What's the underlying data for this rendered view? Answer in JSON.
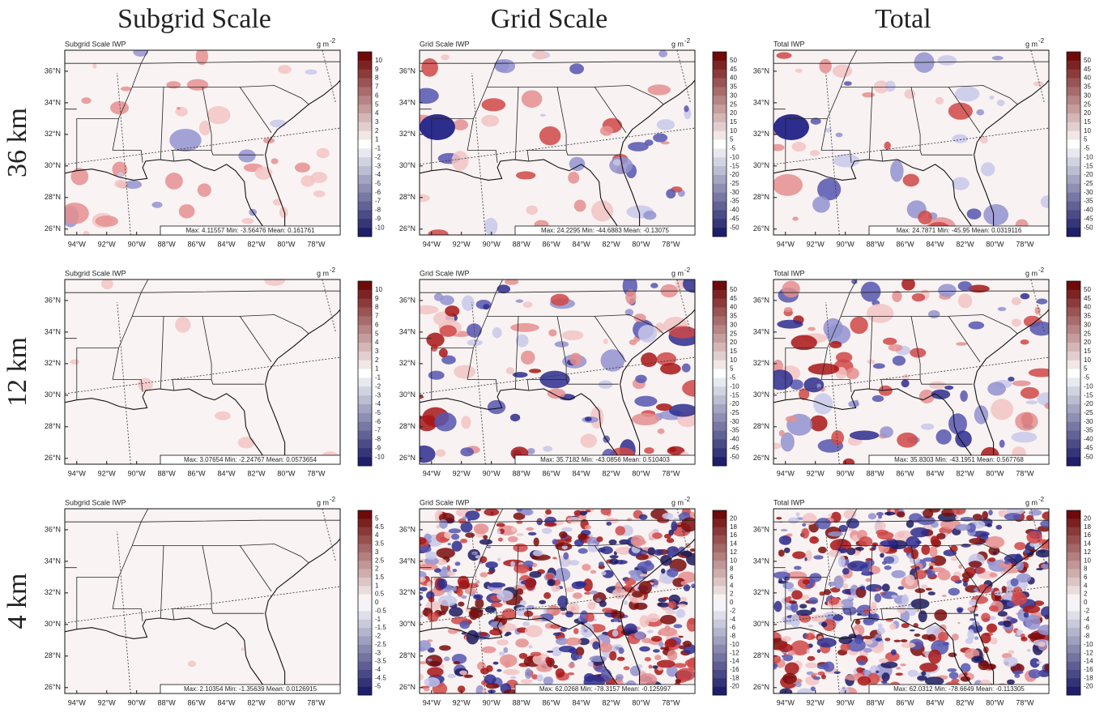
{
  "column_headers": [
    "Subgrid Scale",
    "Grid Scale",
    "Total"
  ],
  "row_headers": [
    "36 km",
    "12 km",
    "4 km"
  ],
  "unit": {
    "text": "g m",
    "exponent": "-2"
  },
  "lat_labels": [
    "36°N",
    "34°N",
    "32°N",
    "30°N",
    "28°N",
    "26°N"
  ],
  "lon_labels": [
    "94°W",
    "92°W",
    "90°W",
    "88°W",
    "86°W",
    "84°W",
    "82°W",
    "80°W",
    "78°W"
  ],
  "panels": [
    [
      {
        "title": "Subgrid Scale IWP",
        "stats": "Max: 4.11557  Min: -3.56476  Mean: 0.161761",
        "colorbar": [
          10,
          9,
          8,
          7,
          6,
          5,
          4,
          3,
          2,
          1,
          -1,
          -2,
          -3,
          -4,
          -5,
          -6,
          -7,
          -8,
          -9,
          -10
        ]
      },
      {
        "title": "Grid Scale IWP",
        "stats": "Max: 24.2295  Min: -44.6883  Mean: -0.13075",
        "colorbar": [
          50,
          45,
          40,
          35,
          30,
          25,
          20,
          15,
          10,
          5,
          -5,
          -10,
          -15,
          -20,
          -25,
          -30,
          -35,
          -40,
          -45,
          -50
        ]
      },
      {
        "title": "Total IWP",
        "stats": "Max: 24.7871  Min: -45.95  Mean: 0.0319116",
        "colorbar": [
          50,
          45,
          40,
          35,
          30,
          25,
          20,
          15,
          10,
          5,
          -5,
          -10,
          -15,
          -20,
          -25,
          -30,
          -35,
          -40,
          -45,
          -50
        ]
      }
    ],
    [
      {
        "title": "Subgrid Scale IWP",
        "stats": "Max: 3.07654  Min: -2.24767  Mean: 0.0573654",
        "colorbar": [
          10,
          9,
          8,
          7,
          6,
          5,
          4,
          3,
          2,
          1,
          -1,
          -2,
          -3,
          -4,
          -5,
          -6,
          -7,
          -8,
          -9,
          -10
        ]
      },
      {
        "title": "Grid Scale IWP",
        "stats": "Max: 35.7182  Min: -43.0856  Mean: 0.510403",
        "colorbar": [
          50,
          45,
          40,
          35,
          30,
          25,
          20,
          15,
          10,
          5,
          -5,
          -10,
          -15,
          -20,
          -25,
          -30,
          -35,
          -40,
          -45,
          -50
        ]
      },
      {
        "title": "Total IWP",
        "stats": "Max: 35.8303  Min: -43.1951  Mean: 0.567768",
        "colorbar": [
          50,
          45,
          40,
          35,
          30,
          25,
          20,
          15,
          10,
          5,
          -5,
          -10,
          -15,
          -20,
          -25,
          -30,
          -35,
          -40,
          -45,
          -50
        ]
      }
    ],
    [
      {
        "title": "Subgrid Scale IWP",
        "stats": "Max: 2.10354  Min: -1.35639  Mean: 0.0126915",
        "colorbar": [
          5,
          4.5,
          4,
          3.5,
          3,
          2.5,
          2,
          1.5,
          1,
          0.5,
          0,
          -0.5,
          -1,
          -1.5,
          -2,
          -2.5,
          -3,
          -3.5,
          -4,
          -4.5,
          -5
        ]
      },
      {
        "title": "Grid Scale IWP",
        "stats": "Max: 62.0268  Min: -78.3157  Mean: -0.125997",
        "colorbar": [
          20,
          18,
          16,
          14,
          12,
          10,
          8,
          6,
          4,
          2,
          0,
          -2,
          -4,
          -6,
          -8,
          -10,
          -12,
          -14,
          -16,
          -18,
          -20
        ]
      },
      {
        "title": "Total IWP",
        "stats": "Max: 62.0312  Min: -78.6649  Mean: -0.113305",
        "colorbar": [
          20,
          18,
          16,
          14,
          12,
          10,
          8,
          6,
          4,
          2,
          0,
          -2,
          -4,
          -6,
          -8,
          -10,
          -12,
          -14,
          -16,
          -18,
          -20
        ]
      }
    ]
  ]
}
